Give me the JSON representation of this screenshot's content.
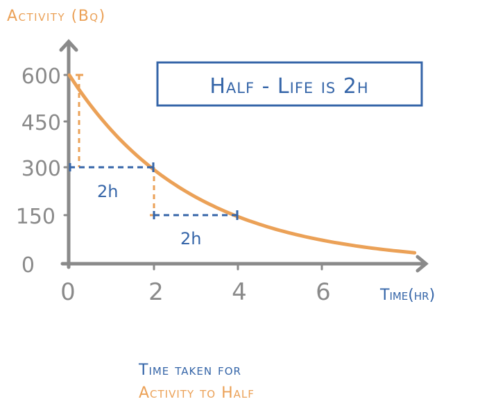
{
  "chart_data": {
    "type": "line",
    "title": "Half-Life is 2h",
    "xlabel": "Time (hr)",
    "ylabel": "Activity (Bq)",
    "x_ticks": [
      0,
      2,
      4,
      6
    ],
    "y_ticks": [
      0,
      150,
      300,
      450,
      600
    ],
    "xlim": [
      0,
      8.2
    ],
    "ylim": [
      0,
      600
    ],
    "grid": false,
    "series": [
      {
        "name": "Activity",
        "color": "#eba157",
        "x": [
          0,
          1,
          2,
          3,
          4,
          5,
          6,
          7,
          8
        ],
        "y": [
          600,
          424,
          300,
          212,
          150,
          106,
          75,
          53,
          37.5
        ]
      }
    ],
    "annotations": [
      {
        "type": "interval",
        "from_x": 0,
        "to_x": 2,
        "y": 300,
        "label": "2h",
        "color": "#3565a8"
      },
      {
        "type": "interval",
        "from_x": 2,
        "to_x": 4,
        "y": 150,
        "label": "2h",
        "color": "#3565a8"
      },
      {
        "type": "vertical-drop",
        "x": 0.25,
        "from_y": 600,
        "to_y": 300,
        "color": "#eba157"
      },
      {
        "type": "vertical-drop",
        "x": 2,
        "from_y": 300,
        "to_y": 150,
        "color": "#eba157"
      }
    ],
    "caption": [
      "Time taken for",
      "activity to half"
    ]
  },
  "labels": {
    "y_axis_title": "Activity (Bq)",
    "x_axis_title": "Time(hr)",
    "title_box": "Half - Life  is  2h",
    "interval_1": "2h",
    "interval_2": "2h",
    "y_ticks": [
      "600",
      "450",
      "300",
      "150",
      "0"
    ],
    "x_ticks": [
      "0",
      "2",
      "4",
      "6"
    ],
    "caption_line_1": "Time taken for",
    "caption_line_2": "Activity to Half"
  },
  "colors": {
    "axis": "#8a8a8a",
    "curve": "#eba157",
    "annotation": "#3565a8",
    "background": "#ffffff"
  }
}
